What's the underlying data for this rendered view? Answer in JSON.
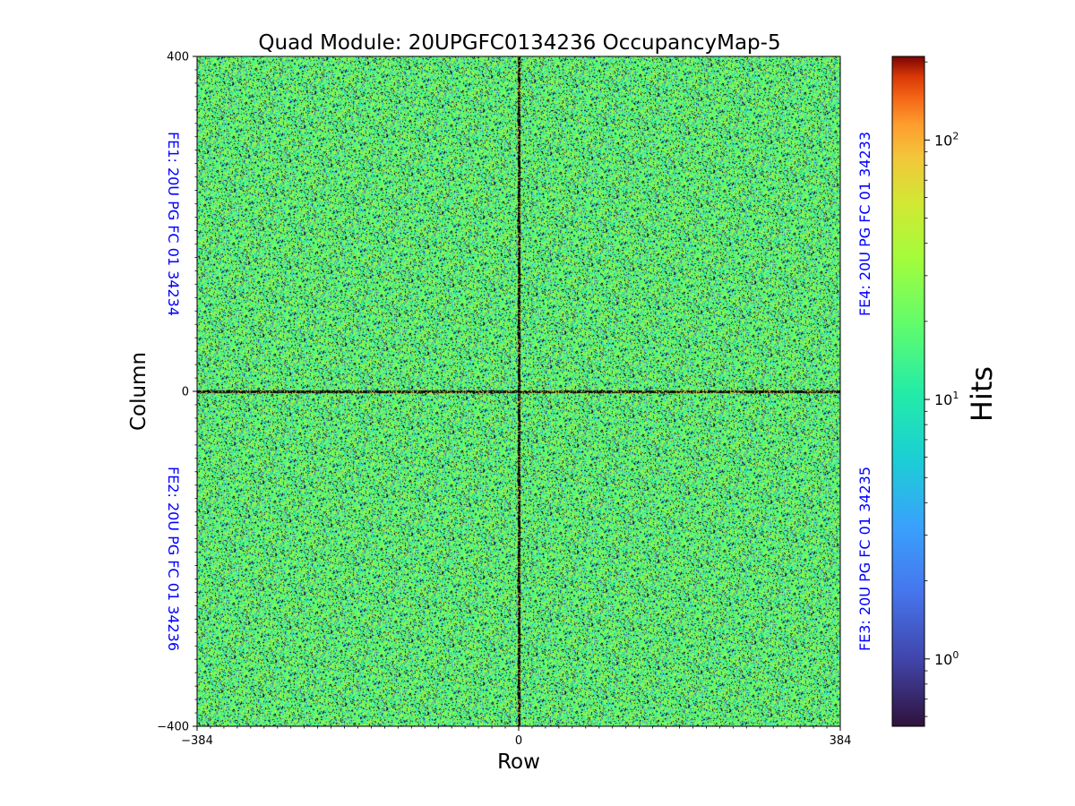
{
  "chart_data": {
    "type": "heatmap",
    "title": "Quad Module: 20UPGFC0134236 OccupancyMap-5",
    "xlabel": "Row",
    "ylabel": "Column",
    "xlim": [
      -384,
      384
    ],
    "ylim": [
      -400,
      400
    ],
    "x_ticks": [
      {
        "value": -384,
        "label": "−384"
      },
      {
        "value": 0,
        "label": "0"
      },
      {
        "value": 384,
        "label": "384"
      }
    ],
    "y_ticks": [
      {
        "value": 400,
        "label": "400"
      },
      {
        "value": 0,
        "label": "0"
      },
      {
        "value": -400,
        "label": "−400"
      }
    ],
    "front_ends": [
      {
        "id": "FE1",
        "label": "FE1: 20U PG FC 01 34234",
        "quadrant": "top-left"
      },
      {
        "id": "FE2",
        "label": "FE2: 20U PG FC 01 34236",
        "quadrant": "bottom-left"
      },
      {
        "id": "FE3",
        "label": "FE3: 20U PG FC 01 34235",
        "quadrant": "bottom-right"
      },
      {
        "id": "FE4",
        "label": "FE4: 20U PG FC 01 34233",
        "quadrant": "top-right"
      }
    ],
    "colorbar": {
      "label": "Hits",
      "scale": "log",
      "range": [
        0.55,
        210
      ],
      "colormap": "turbo",
      "ticks": [
        {
          "value": 1,
          "base": "10",
          "exp": "0"
        },
        {
          "value": 10,
          "base": "10",
          "exp": "1"
        },
        {
          "value": 100,
          "base": "10",
          "exp": "2"
        }
      ]
    },
    "typical_hits": 20,
    "dead_pixel_lines": {
      "row": 0,
      "column": 0
    }
  }
}
